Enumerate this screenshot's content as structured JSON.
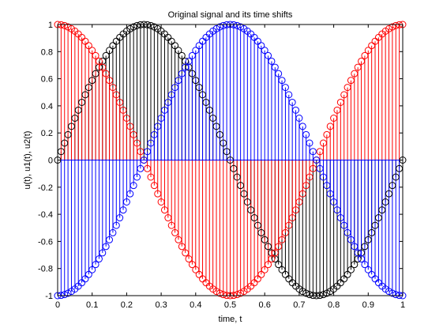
{
  "chart_data": {
    "type": "stem",
    "title": "Original signal and its time shifts",
    "xlabel": "time, t",
    "ylabel": "u(t), u1(t), u2(t)",
    "xlim": [
      0,
      1
    ],
    "ylim": [
      -1,
      1
    ],
    "x_ticks": [
      0,
      0.1,
      0.2,
      0.3,
      0.4,
      0.5,
      0.6,
      0.7,
      0.8,
      0.9,
      1
    ],
    "x_tick_labels": [
      "0",
      "0.1",
      "0.2",
      "0.3",
      "0.4",
      "0.5",
      "0.6",
      "0.7",
      "0.8",
      "0.9",
      "1"
    ],
    "y_ticks": [
      -1,
      -0.8,
      -0.6,
      -0.4,
      -0.2,
      0,
      0.2,
      0.4,
      0.6,
      0.8,
      1
    ],
    "y_tick_labels": [
      "-1",
      "-0.8",
      "-0.6",
      "-0.4",
      "-0.2",
      "0",
      "0.2",
      "0.4",
      "0.6",
      "0.8",
      "1"
    ],
    "grid": false,
    "legend": "none",
    "x_step": 0.01,
    "series": [
      {
        "formula": "sin(2*pi*t)",
        "color": "#000000",
        "marker": "circle",
        "stem": true
      },
      {
        "formula": "cos(2*pi*t)",
        "color": "#ff0000",
        "marker": "circle",
        "stem": true
      },
      {
        "formula": "-cos(2*pi*t)",
        "color": "#0000ff",
        "marker": "circle",
        "stem": true
      }
    ]
  }
}
